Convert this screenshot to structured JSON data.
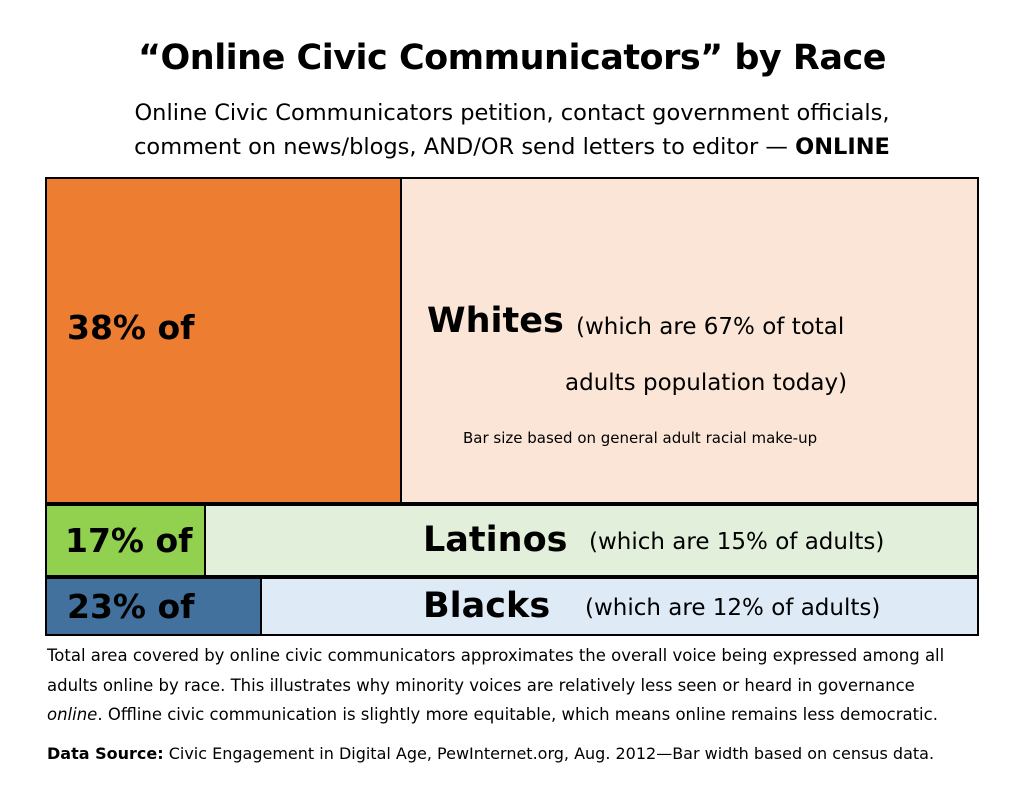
{
  "title": "“Online Civic Communicators” by Race",
  "subtitle_line1": "Online Civic Communicators petition, contact government officials,",
  "subtitle_line2_prefix": "comment on news/blogs, AND/OR send letters to editor — ",
  "subtitle_line2_bold": "ONLINE",
  "chart_data": {
    "type": "bar",
    "title": "“Online Civic Communicators” by Race",
    "categories": [
      "Whites",
      "Latinos",
      "Blacks"
    ],
    "series": [
      {
        "name": "",
        "values": [
          38,
          17,
          23
        ]
      }
    ],
    "population_share": [
      67,
      15,
      12
    ],
    "value_labels": [
      "38% of",
      "17% of",
      "23% of"
    ],
    "group_notes": [
      "(which are 67% of total",
      "(which are 15% of adults)",
      "(which are 12% of adults)"
    ],
    "group_note_extra": "adults population today)",
    "annotation": "Bar size based on general  adult racial make-up",
    "colors": {
      "Whites": {
        "filled": "#ed7d31",
        "rest": "#fbe5d6"
      },
      "Latinos": {
        "filled": "#92d050",
        "rest": "#e2efda"
      },
      "Blacks": {
        "filled": "#41719c",
        "rest": "#deebf7"
      }
    },
    "ylim": [
      0,
      100
    ]
  },
  "footnote_line1": "Total area covered by online civic communicators approximates the overall voice being expressed among all",
  "footnote_line2": "adults online by race. This illustrates why minority voices are relatively less seen or heard in governance",
  "footnote_line3_italic": "online",
  "footnote_line3_rest": ". Offline civic communication is slightly more equitable, which means online remains less democratic.",
  "source_label": "Data Source:",
  "source_text": " Civic Engagement in Digital Age, PewInternet.org, Aug. 2012—Bar width based on census data."
}
